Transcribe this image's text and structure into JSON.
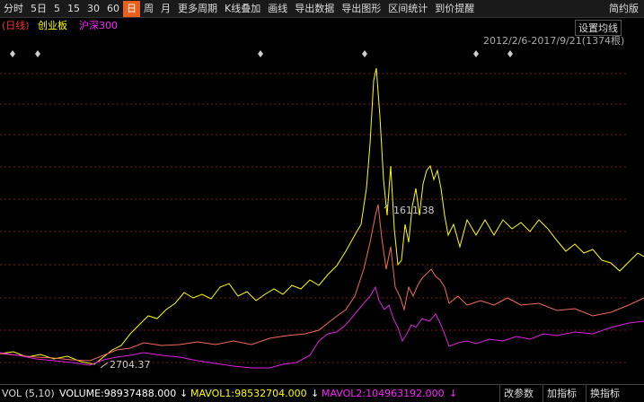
{
  "toolbar": {
    "items": [
      "分时",
      "5日",
      "5",
      "15",
      "30",
      "60",
      "日",
      "周",
      "月",
      "更多周期",
      "K线叠加",
      "画线",
      "导出数据",
      "导出图形",
      "区间统计",
      "到价提醒"
    ],
    "right": "简约版"
  },
  "legend": {
    "period": "(日线)",
    "series": [
      "创业板",
      "沪深300"
    ]
  },
  "settings_button": "设置均线",
  "range": "2012/2/6-2017/9/21(1374根)",
  "annotations": [
    "2704.37",
    "1611.38"
  ],
  "volume_bar": {
    "label": "VOL (5,10)",
    "volume": "VOLUME:98937488.000",
    "mavol1": "MAVOL1:98532704.000",
    "mavol2": "MAVOL2:104963192.000",
    "buttons": [
      "改参数",
      "加指标",
      "换指标"
    ]
  }
}
